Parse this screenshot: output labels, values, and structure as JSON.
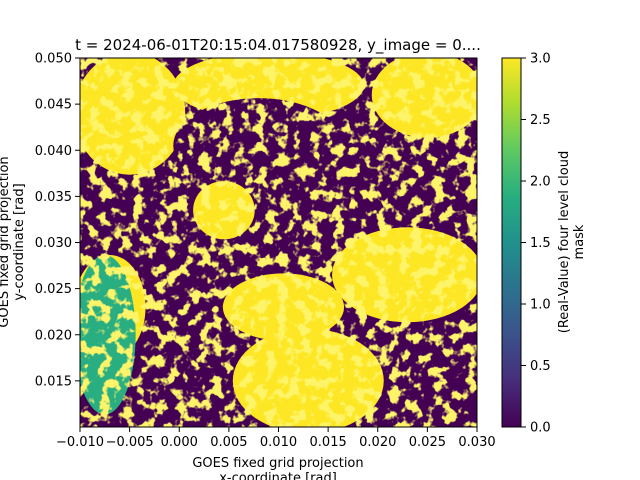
{
  "chart_data": {
    "type": "heatmap",
    "title": "t = 2024-06-01T20:15:04.017580928, y_image = 0....",
    "xlabel": [
      "GOES fixed grid projection",
      "x-coordinate [rad]"
    ],
    "ylabel": [
      "GOES fixed grid projection",
      "y-coordinate [rad]"
    ],
    "xlim": [
      -0.01,
      0.03
    ],
    "ylim": [
      0.01,
      0.05
    ],
    "xticks": [
      -0.01,
      -0.005,
      0.0,
      0.005,
      0.01,
      0.015,
      0.02,
      0.025,
      0.03
    ],
    "xtick_labels": [
      "−0.010",
      "−0.005",
      "0.000",
      "0.005",
      "0.010",
      "0.015",
      "0.020",
      "0.025",
      "0.030"
    ],
    "yticks": [
      0.015,
      0.02,
      0.025,
      0.03,
      0.035,
      0.04,
      0.045,
      0.05
    ],
    "ytick_labels": [
      "0.015",
      "0.020",
      "0.025",
      "0.030",
      "0.035",
      "0.040",
      "0.045",
      "0.050"
    ],
    "colorbar": {
      "label": [
        "(Real-Value) four level cloud",
        "mask"
      ],
      "vmin": 0.0,
      "vmax": 3.0,
      "ticks": [
        0.0,
        0.5,
        1.0,
        1.5,
        2.0,
        2.5,
        3.0
      ],
      "tick_labels": [
        "0.0",
        "0.5",
        "1.0",
        "1.5",
        "2.0",
        "2.5",
        "3.0"
      ],
      "colormap": "viridis"
    },
    "colors": {
      "low": "#440154",
      "mid_low": "#31688e",
      "mid": "#21918c",
      "mid_high": "#35b779",
      "high": "#fde725"
    },
    "value_regions": [
      {
        "value": 3.0,
        "x": [
          -0.01,
          0.0
        ],
        "y": [
          0.038,
          0.05
        ]
      },
      {
        "value": 3.0,
        "x": [
          0.0,
          0.018
        ],
        "y": [
          0.044,
          0.05
        ]
      },
      {
        "value": 0.0,
        "x": [
          0.0,
          0.016
        ],
        "y": [
          0.036,
          0.045
        ]
      },
      {
        "value": 0.0,
        "x": [
          0.014,
          0.03
        ],
        "y": [
          0.032,
          0.04
        ]
      },
      {
        "value": 3.0,
        "x": [
          0.02,
          0.03
        ],
        "y": [
          0.042,
          0.05
        ]
      },
      {
        "value": 3.0,
        "x": [
          0.002,
          0.007
        ],
        "y": [
          0.031,
          0.036
        ]
      },
      {
        "value": 0.0,
        "x": [
          -0.01,
          0.0
        ],
        "y": [
          0.028,
          0.036
        ]
      },
      {
        "value": 3.0,
        "x": [
          -0.01,
          -0.004
        ],
        "y": [
          0.018,
          0.028
        ]
      },
      {
        "value": 0.0,
        "x": [
          -0.003,
          0.004
        ],
        "y": [
          0.01,
          0.028
        ]
      },
      {
        "value": 3.0,
        "x": [
          0.005,
          0.016
        ],
        "y": [
          0.02,
          0.026
        ]
      },
      {
        "value": 3.0,
        "x": [
          0.016,
          0.03
        ],
        "y": [
          0.022,
          0.031
        ]
      },
      {
        "value": 0.0,
        "x": [
          0.02,
          0.03
        ],
        "y": [
          0.01,
          0.02
        ]
      },
      {
        "value": 3.0,
        "x": [
          0.006,
          0.02
        ],
        "y": [
          0.01,
          0.02
        ]
      },
      {
        "value": 1.8,
        "x": [
          -0.01,
          -0.005
        ],
        "y": [
          0.012,
          0.028
        ]
      }
    ]
  }
}
